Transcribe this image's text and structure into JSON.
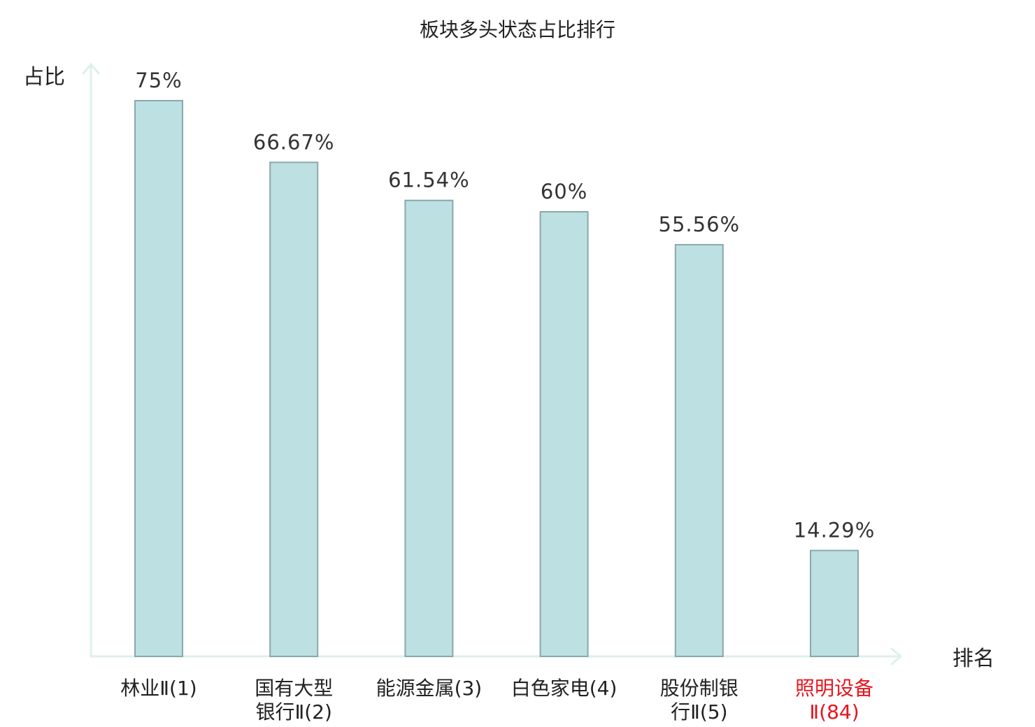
{
  "chart_data": {
    "type": "bar",
    "title": "板块多头状态占比排行",
    "ylabel": "占比",
    "xlabel": "排名",
    "categories": [
      [
        "林业Ⅱ(1)"
      ],
      [
        "国有大型",
        "银行Ⅱ(2)"
      ],
      [
        "能源金属(3)"
      ],
      [
        "白色家电(4)"
      ],
      [
        "股份制银",
        "行Ⅱ(5)"
      ],
      [
        "照明设备",
        "Ⅱ(84)"
      ]
    ],
    "values": [
      75,
      66.67,
      61.54,
      60,
      55.56,
      14.29
    ],
    "value_labels": [
      "75%",
      "66.67%",
      "61.54%",
      "60%",
      "55.56%",
      "14.29%"
    ],
    "highlighted_category_index": 5,
    "ylim": [
      0,
      80
    ],
    "grid": false,
    "colors": {
      "bar_fill": "#bde0e3",
      "bar_stroke": "#8aa8aa",
      "axis": "#dff0ec",
      "text": "#222222",
      "highlight_text": "#e8141c"
    }
  }
}
